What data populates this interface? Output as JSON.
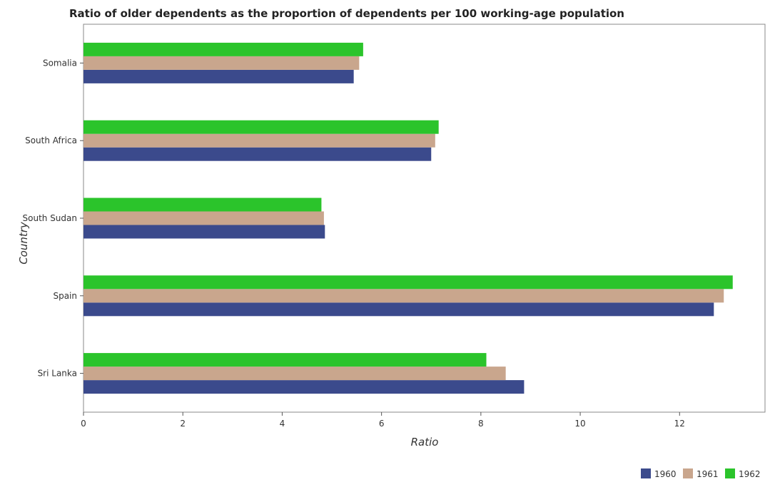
{
  "chart_data": {
    "type": "bar",
    "orientation": "horizontal",
    "title": "Ratio of older dependents as the proportion of dependents per 100 working-age population",
    "xlabel": "Ratio",
    "ylabel": "Country",
    "categories": [
      "Somalia",
      "South Africa",
      "South Sudan",
      "Spain",
      "Sri Lanka"
    ],
    "series": [
      {
        "name": "1960",
        "color": "#3b4a8c",
        "values": [
          5.44,
          7.0,
          4.86,
          12.69,
          8.87
        ]
      },
      {
        "name": "1961",
        "color": "#c9a68d",
        "values": [
          5.55,
          7.08,
          4.84,
          12.89,
          8.5
        ]
      },
      {
        "name": "1962",
        "color": "#2bc42b",
        "values": [
          5.63,
          7.15,
          4.79,
          13.07,
          8.11
        ]
      }
    ],
    "xlim": [
      0,
      13.72
    ],
    "xticks": [
      0,
      2,
      4,
      6,
      8,
      10,
      12
    ],
    "xtick_labels": [
      "0",
      "2",
      "4",
      "6",
      "8",
      "10",
      "12"
    ],
    "grid": false,
    "legend_position": "bottom-right"
  }
}
